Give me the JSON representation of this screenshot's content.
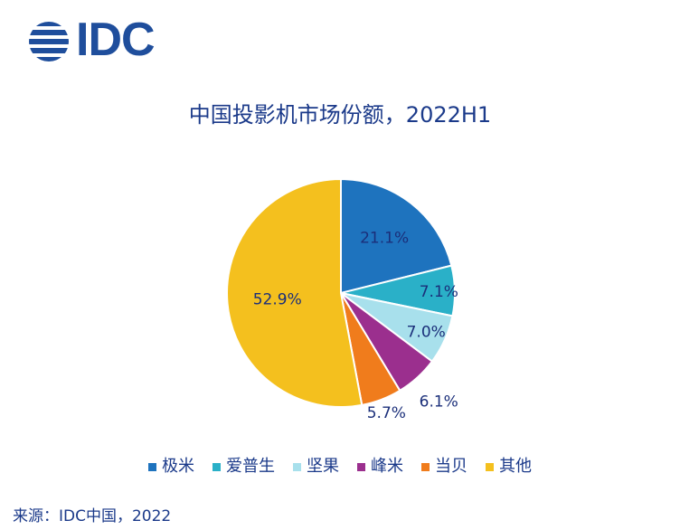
{
  "logo": {
    "text": "IDC"
  },
  "chart_data": {
    "type": "pie",
    "title": "中国投影机市场份额，2022H1",
    "categories": [
      "极米",
      "爱普生",
      "坚果",
      "峰米",
      "当贝",
      "其他"
    ],
    "values": [
      21.1,
      7.1,
      7.0,
      6.1,
      5.7,
      52.9
    ],
    "labels": [
      "21.1%",
      "7.1%",
      "7.0%",
      "6.1%",
      "5.7%",
      "52.9%"
    ],
    "colors": [
      "#1e73be",
      "#2ab0c8",
      "#a8e0ec",
      "#9b2f8e",
      "#f07c1c",
      "#f4c01e"
    ],
    "legend_position": "bottom"
  },
  "source": "来源：IDC中国，2022"
}
